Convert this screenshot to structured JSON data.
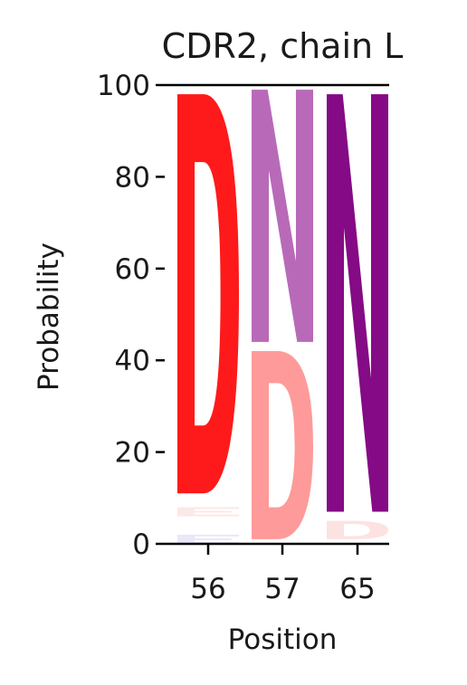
{
  "chart_data": {
    "type": "sequence-logo",
    "title": "CDR2, chain L",
    "xlabel": "Position",
    "ylabel": "Probability",
    "ylim": [
      0,
      100
    ],
    "yticks": [
      0,
      20,
      40,
      60,
      80,
      100
    ],
    "positions": [
      "56",
      "57",
      "65"
    ],
    "stacks": [
      {
        "position": "56",
        "letters": [
          {
            "letter": "E",
            "bottom": 0,
            "top": 2,
            "color": "#e8e8f8"
          },
          {
            "letter": "E",
            "bottom": 6,
            "top": 8,
            "color": "#fde8e8"
          },
          {
            "letter": "D",
            "bottom": 11,
            "top": 98,
            "color": "#fe1a1a"
          }
        ]
      },
      {
        "position": "57",
        "letters": [
          {
            "letter": "D",
            "bottom": 1,
            "top": 42,
            "color": "#fe9a9a"
          },
          {
            "letter": "N",
            "bottom": 44,
            "top": 99,
            "color": "#b86ab8"
          }
        ]
      },
      {
        "position": "65",
        "letters": [
          {
            "letter": "D",
            "bottom": 1,
            "top": 5,
            "color": "#fde2e2"
          },
          {
            "letter": "N",
            "bottom": 7,
            "top": 98,
            "color": "#850a85"
          }
        ]
      }
    ]
  }
}
